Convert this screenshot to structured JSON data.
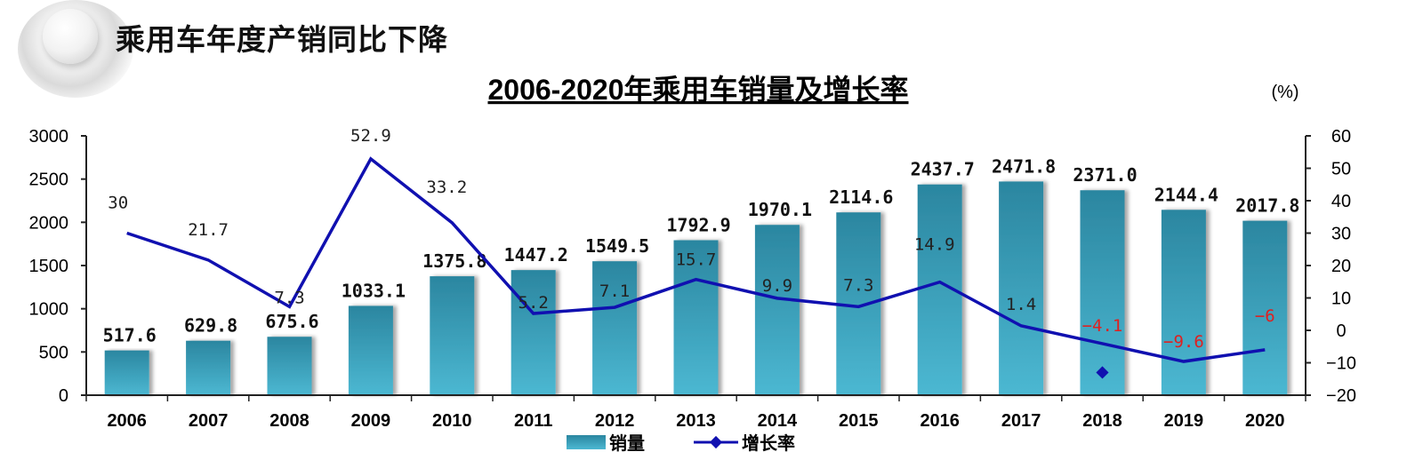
{
  "page": {
    "heading": "乘用车年度产销同比下降",
    "unit": "(%)"
  },
  "chart_data": {
    "type": "bar+line",
    "title": "2006-2020年乘用车销量及增长率",
    "categories": [
      "2006",
      "2007",
      "2008",
      "2009",
      "2010",
      "2011",
      "2012",
      "2013",
      "2014",
      "2015",
      "2016",
      "2017",
      "2018",
      "2019",
      "2020"
    ],
    "series": [
      {
        "name": "销量",
        "type": "bar",
        "axis": "left",
        "values": [
          517.6,
          629.8,
          675.6,
          1033.1,
          1375.8,
          1447.2,
          1549.5,
          1792.9,
          1970.1,
          2114.6,
          2437.7,
          2471.8,
          2371.0,
          2144.4,
          2017.8
        ],
        "labels": [
          "517.6",
          "629.8",
          "675.6",
          "1033.1",
          "1375.8",
          "1447.2",
          "1549.5",
          "1792.9",
          "1970.1",
          "2114.6",
          "2437.7",
          "2471.8",
          "2371.0",
          "2144.4",
          "2017.8"
        ]
      },
      {
        "name": "增长率",
        "type": "line",
        "axis": "right",
        "values": [
          30,
          21.7,
          7.3,
          52.9,
          33.2,
          5.2,
          7.1,
          15.7,
          9.9,
          7.3,
          14.9,
          1.4,
          -4.1,
          -9.6,
          -6
        ],
        "labels": [
          "30",
          "21.7",
          "7.3",
          "52.9",
          "33.2",
          "5.2",
          "7.1",
          "15.7",
          "9.9",
          "7.3",
          "14.9",
          "1.4",
          "-4.1",
          "-9.6",
          "-6"
        ]
      }
    ],
    "left_axis": {
      "ylim": [
        0,
        3000
      ],
      "ticks": [
        "0",
        "500",
        "1000",
        "1500",
        "2000",
        "2500",
        "3000"
      ]
    },
    "right_axis": {
      "ylim": [
        -20,
        60
      ],
      "ticks": [
        "-20",
        "-10",
        "0",
        "10",
        "20",
        "30",
        "40",
        "50",
        "60"
      ],
      "label": "(%)"
    },
    "legend": {
      "placement": "bottom",
      "items": [
        "销量",
        "增长率"
      ]
    },
    "colors": {
      "bar_top": "#2b86a0",
      "bar_bottom": "#4cb8d2",
      "line": "#1010b0",
      "negative_label": "#e02020",
      "label": "#111111"
    }
  }
}
